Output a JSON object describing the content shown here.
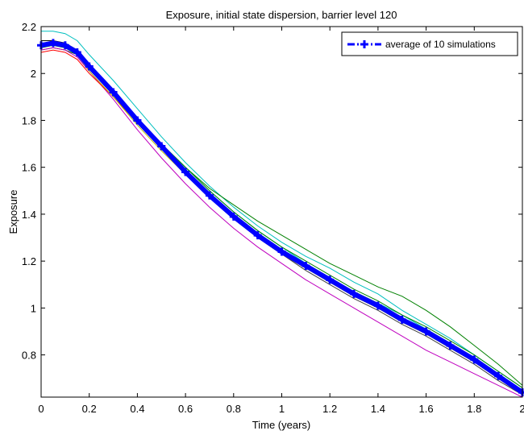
{
  "chart_data": {
    "type": "line",
    "title": "Exposure, initial state dispersion, barrier level 120",
    "xlabel": "Time (years)",
    "ylabel": "Exposure",
    "xlim": [
      0,
      2
    ],
    "ylim": [
      0.62,
      2.2
    ],
    "xticks": [
      0,
      0.2,
      0.4,
      0.6,
      0.8,
      1,
      1.2,
      1.4,
      1.6,
      1.8,
      2
    ],
    "yticks": [
      0.8,
      1,
      1.2,
      1.4,
      1.6,
      1.8,
      2,
      2.2
    ],
    "grid": false,
    "legend": {
      "location": "top-right",
      "entries": [
        "average of 10 simulations"
      ]
    },
    "x": [
      0,
      0.05,
      0.1,
      0.15,
      0.2,
      0.3,
      0.4,
      0.5,
      0.6,
      0.7,
      0.8,
      0.9,
      1.0,
      1.1,
      1.2,
      1.3,
      1.4,
      1.5,
      1.6,
      1.7,
      1.8,
      1.9,
      2.0
    ],
    "series": [
      {
        "name": "average of 10 simulations",
        "color": "#0000ff",
        "style": "dash-dot with markers",
        "values": [
          2.12,
          2.13,
          2.12,
          2.09,
          2.03,
          1.92,
          1.8,
          1.69,
          1.58,
          1.48,
          1.39,
          1.31,
          1.24,
          1.18,
          1.12,
          1.06,
          1.01,
          0.95,
          0.9,
          0.84,
          0.78,
          0.71,
          0.64
        ]
      },
      {
        "color": "#00bfbf",
        "values": [
          2.18,
          2.18,
          2.17,
          2.14,
          2.08,
          1.97,
          1.85,
          1.73,
          1.62,
          1.52,
          1.43,
          1.35,
          1.28,
          1.22,
          1.17,
          1.11,
          1.06,
          0.99,
          0.93,
          0.87,
          0.8,
          0.73,
          0.66
        ]
      },
      {
        "color": "#008000",
        "values": [
          2.1,
          2.11,
          2.1,
          2.08,
          2.02,
          1.91,
          1.8,
          1.7,
          1.6,
          1.51,
          1.44,
          1.37,
          1.31,
          1.25,
          1.19,
          1.14,
          1.09,
          1.05,
          0.99,
          0.92,
          0.84,
          0.76,
          0.67
        ]
      },
      {
        "color": "#bf00bf",
        "values": [
          2.1,
          2.11,
          2.1,
          2.07,
          2.01,
          1.89,
          1.76,
          1.64,
          1.53,
          1.43,
          1.34,
          1.26,
          1.19,
          1.12,
          1.06,
          1.0,
          0.94,
          0.88,
          0.82,
          0.77,
          0.72,
          0.67,
          0.62
        ]
      },
      {
        "color": "#ff0000",
        "values": [
          2.09,
          2.1,
          2.09,
          2.06,
          2.0,
          1.9,
          1.79,
          1.68,
          1.58,
          1.48,
          1.39,
          1.31,
          1.24,
          1.18,
          1.12,
          1.07,
          1.02,
          0.96,
          0.9,
          0.84,
          0.77,
          0.7,
          0.63
        ]
      },
      {
        "color": "#000000",
        "values": [
          2.14,
          2.14,
          2.13,
          2.1,
          2.04,
          1.92,
          1.8,
          1.69,
          1.58,
          1.48,
          1.38,
          1.3,
          1.23,
          1.17,
          1.11,
          1.05,
          1.0,
          0.94,
          0.89,
          0.83,
          0.77,
          0.7,
          0.63
        ]
      },
      {
        "color": "#bfbf00",
        "values": [
          2.11,
          2.12,
          2.11,
          2.08,
          2.01,
          1.9,
          1.78,
          1.67,
          1.57,
          1.47,
          1.38,
          1.3,
          1.23,
          1.17,
          1.11,
          1.06,
          1.01,
          0.95,
          0.9,
          0.84,
          0.78,
          0.71,
          0.64
        ]
      },
      {
        "color": "#404040",
        "values": [
          2.13,
          2.13,
          2.12,
          2.09,
          2.02,
          1.91,
          1.79,
          1.68,
          1.57,
          1.47,
          1.38,
          1.3,
          1.23,
          1.16,
          1.1,
          1.04,
          0.99,
          0.93,
          0.88,
          0.82,
          0.76,
          0.69,
          0.63
        ]
      },
      {
        "color": "#0000ff",
        "values": [
          2.12,
          2.12,
          2.11,
          2.08,
          2.02,
          1.91,
          1.79,
          1.68,
          1.58,
          1.48,
          1.39,
          1.31,
          1.24,
          1.18,
          1.12,
          1.06,
          1.01,
          0.95,
          0.9,
          0.84,
          0.78,
          0.72,
          0.65
        ]
      },
      {
        "color": "#00bfbf",
        "values": [
          2.13,
          2.13,
          2.12,
          2.1,
          2.04,
          1.93,
          1.81,
          1.7,
          1.6,
          1.5,
          1.41,
          1.33,
          1.26,
          1.19,
          1.13,
          1.07,
          1.02,
          0.97,
          0.91,
          0.85,
          0.79,
          0.72,
          0.65
        ]
      },
      {
        "color": "#008000",
        "values": [
          2.11,
          2.12,
          2.11,
          2.08,
          2.03,
          1.92,
          1.81,
          1.7,
          1.6,
          1.5,
          1.41,
          1.33,
          1.26,
          1.2,
          1.14,
          1.08,
          1.03,
          0.97,
          0.92,
          0.86,
          0.8,
          0.73,
          0.66
        ]
      }
    ]
  }
}
